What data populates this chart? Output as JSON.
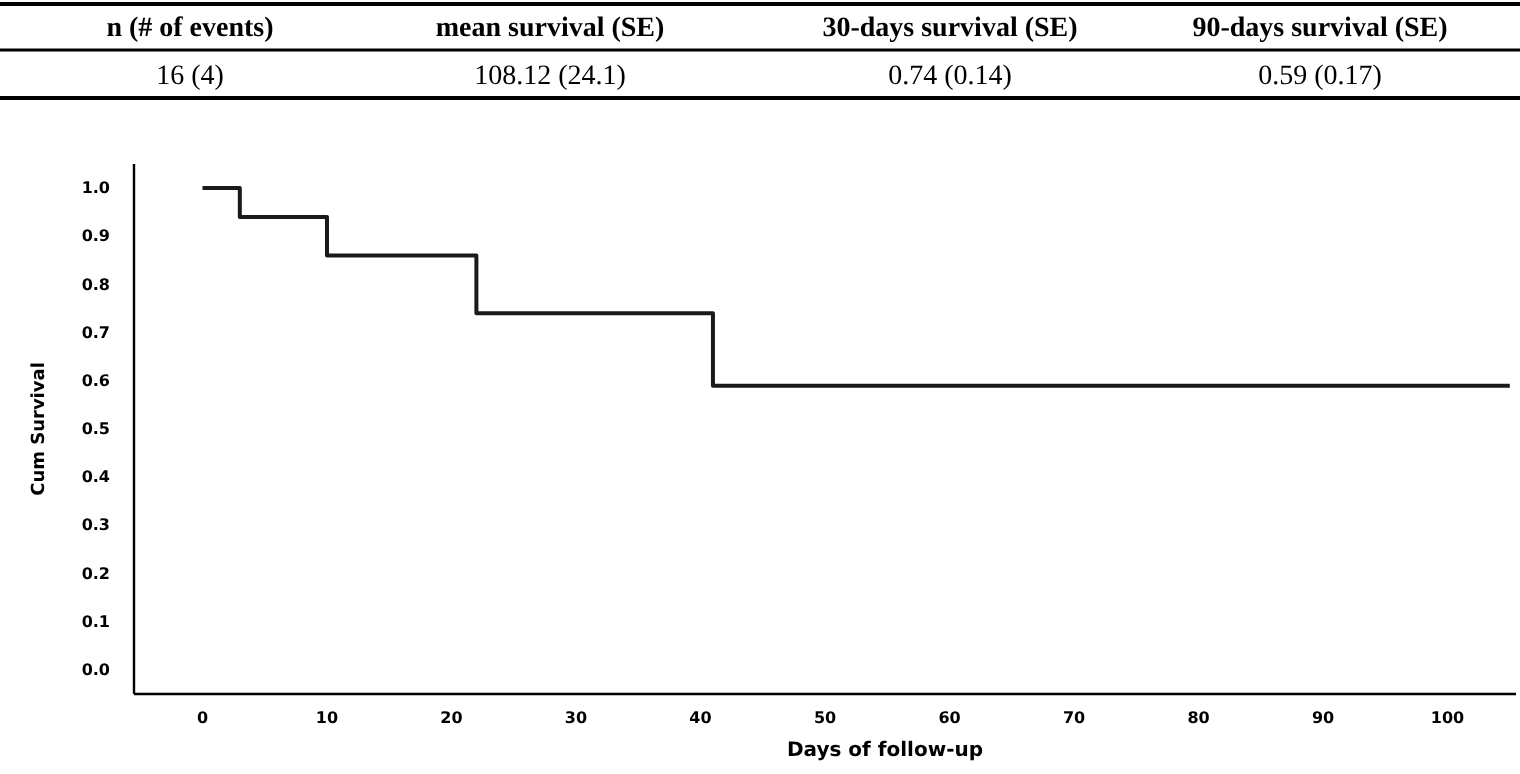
{
  "chart_data": {
    "type": "step",
    "xlabel": "Days of follow-up",
    "ylabel": "Cum Survival",
    "annotations": [
      "n (# of events)",
      "mean survival (SE)",
      "30-days survival (SE)",
      "90-days survival (SE)",
      "16 (4)",
      "108.12 (24.1)",
      "0.74 (0.14)",
      "0.59 (0.17)"
    ],
    "x": [
      0,
      3,
      10,
      22,
      41,
      105
    ],
    "series": [
      {
        "color": "#1a1a1a",
        "values": [
          1.0,
          0.94,
          0.86,
          0.74,
          0.59,
          0.59
        ]
      }
    ],
    "xlim": [
      -5.5,
      105.5
    ],
    "xticks": [
      0,
      10,
      20,
      30,
      40,
      50,
      60,
      70,
      80,
      90,
      100
    ],
    "ylim": [
      -0.05,
      1.05
    ],
    "yticks": [
      {
        "value": 0,
        "label": "0.0"
      },
      {
        "value": 0.1,
        "label": "0.1"
      },
      {
        "value": 0.2,
        "label": "0.2"
      },
      {
        "value": 0.3,
        "label": "0.3"
      },
      {
        "value": 0.4,
        "label": "0.4"
      },
      {
        "value": 0.5,
        "label": "0.5"
      },
      {
        "value": 0.6,
        "label": "0.6"
      },
      {
        "value": 0.7,
        "label": "0.7"
      },
      {
        "value": 0.8,
        "label": "0.8"
      },
      {
        "value": 0.9,
        "label": "0.9"
      },
      {
        "value": 1,
        "label": "1.0"
      }
    ],
    "grid": false,
    "marker": "none",
    "line_style": "solid"
  }
}
